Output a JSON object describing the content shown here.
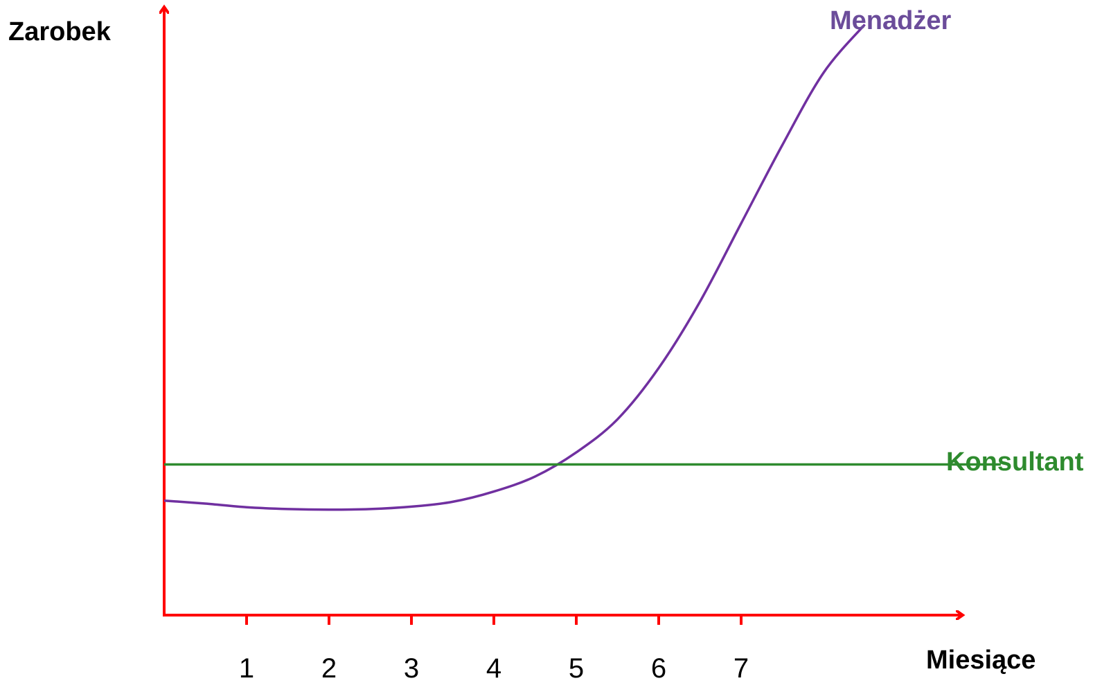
{
  "chart_data": {
    "type": "line",
    "xlabel": "Miesiące",
    "ylabel": "Zarobek",
    "x_ticks": [
      "1",
      "2",
      "3",
      "4",
      "5",
      "6",
      "7"
    ],
    "xlim": [
      0,
      8.9
    ],
    "ylim": [
      0,
      10
    ],
    "grid": false,
    "axis_color": "#ff0000",
    "series": [
      {
        "name": "Menadżer",
        "color": "#7030a0",
        "label_color": "#6b4c9a",
        "x": [
          0,
          0.5,
          1,
          1.5,
          2,
          2.5,
          3,
          3.5,
          4,
          4.5,
          5,
          5.5,
          6,
          6.5,
          7,
          7.5,
          8,
          8.5
        ],
        "y": [
          1.9,
          1.85,
          1.79,
          1.76,
          1.75,
          1.76,
          1.8,
          1.88,
          2.05,
          2.3,
          2.7,
          3.25,
          4.1,
          5.2,
          6.5,
          7.8,
          9.0,
          9.8
        ]
      },
      {
        "name": "Konsultant",
        "color": "#2e8b2e",
        "label_color": "#2e8b2e",
        "x": [
          0,
          10.15
        ],
        "y": [
          2.5,
          2.5
        ]
      }
    ]
  }
}
